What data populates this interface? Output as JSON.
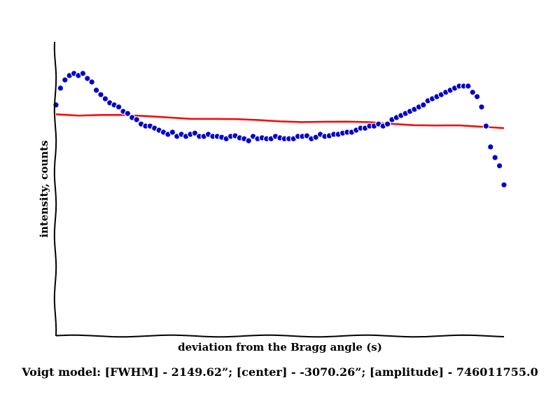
{
  "chart_data": {
    "type": "scatter",
    "xlabel": "deviation from the Bragg angle (s)",
    "ylabel": "intensity, counts",
    "caption": "Voigt model:   [FWHM] - 2149.62”; [center] - -3070.26”; [amplitude] - 746011755.0",
    "grid": false,
    "x_ticks_shown": false,
    "y_ticks_shown": false,
    "xlim": [
      0,
      100
    ],
    "ylim": [
      0,
      100
    ],
    "series": [
      {
        "kind": "points",
        "color": "#0000cc",
        "x": [
          0,
          1,
          2,
          3,
          4,
          5,
          6,
          7,
          8,
          9,
          10,
          11,
          12,
          13,
          14,
          15,
          16,
          17,
          18,
          19,
          20,
          21,
          22,
          23,
          24,
          25,
          26,
          27,
          28,
          29,
          30,
          31,
          32,
          33,
          34,
          35,
          36,
          37,
          38,
          39,
          40,
          41,
          42,
          43,
          44,
          45,
          46,
          47,
          48,
          49,
          50,
          51,
          52,
          53,
          54,
          55,
          56,
          57,
          58,
          59,
          60,
          61,
          62,
          63,
          64,
          65,
          66,
          67,
          68,
          69,
          70,
          71,
          72,
          73,
          74,
          75,
          76,
          77,
          78,
          79,
          80,
          81,
          82,
          83,
          84,
          85,
          86,
          87,
          88,
          89,
          90,
          91,
          92,
          93,
          94,
          95,
          96,
          97,
          98,
          99,
          100
        ],
        "y": [
          78.6,
          84.3,
          87.1,
          88.6,
          89.3,
          88.6,
          89.3,
          87.6,
          86.4,
          83.6,
          82.1,
          80.7,
          79.3,
          78.6,
          77.9,
          76.4,
          75.7,
          74.3,
          73.6,
          72.1,
          71.4,
          71.4,
          70.7,
          70.0,
          69.3,
          68.6,
          69.3,
          67.9,
          68.6,
          67.9,
          68.6,
          69.0,
          67.9,
          67.9,
          68.6,
          67.9,
          67.9,
          67.6,
          67.1,
          67.9,
          68.1,
          67.4,
          67.1,
          66.4,
          67.9,
          67.1,
          67.4,
          67.1,
          67.1,
          67.9,
          67.4,
          67.1,
          67.1,
          67.1,
          67.9,
          67.9,
          68.1,
          67.1,
          67.6,
          68.6,
          67.9,
          68.1,
          68.6,
          68.6,
          69.0,
          69.3,
          69.3,
          70.0,
          70.7,
          70.7,
          71.4,
          71.4,
          72.1,
          71.4,
          72.1,
          73.6,
          74.3,
          75.0,
          75.7,
          76.4,
          77.1,
          77.9,
          78.6,
          80.0,
          80.7,
          81.4,
          82.1,
          82.9,
          83.6,
          84.3,
          85.0,
          85.0,
          85.0,
          82.9,
          81.4,
          77.9,
          71.4,
          64.3,
          60.7,
          57.9,
          51.4
        ]
      },
      {
        "kind": "fit-line",
        "color": "#ff0000",
        "x": [
          0,
          5,
          10,
          15,
          20,
          25,
          30,
          35,
          40,
          45,
          50,
          55,
          60,
          65,
          70,
          75,
          80,
          85,
          90,
          95,
          100
        ],
        "y": [
          75.4,
          75.2,
          75.3,
          75.0,
          74.6,
          74.4,
          74.1,
          73.9,
          73.6,
          73.3,
          73.1,
          73.0,
          72.9,
          72.7,
          72.6,
          72.3,
          71.9,
          71.6,
          71.4,
          71.1,
          70.9
        ]
      }
    ]
  }
}
